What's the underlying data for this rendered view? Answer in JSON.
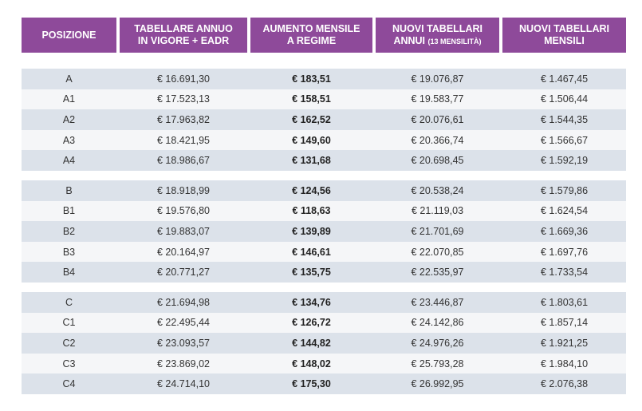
{
  "headers": {
    "col1": "POSIZIONE",
    "col2_line1": "TABELLARE ANNUO",
    "col2_line2": "IN VIGORE + EADR",
    "col3_line1": "AUMENTO MENSILE",
    "col3_line2": "A  REGIME",
    "col4_line1": "NUOVI TABELLARI",
    "col4_line2": "ANNUI",
    "col4_small": "(13 MENSILITÀ)",
    "col5_line1": "NUOVI TABELLARI",
    "col5_line2": "MENSILI"
  },
  "groups": [
    {
      "rows": [
        {
          "pos": "A",
          "annuo": "€ 16.691,30",
          "aumento": "€ 183,51",
          "nuovi_annui": "€ 19.076,87",
          "nuovi_mensili": "€ 1.467,45"
        },
        {
          "pos": "A1",
          "annuo": "€ 17.523,13",
          "aumento": "€ 158,51",
          "nuovi_annui": "€ 19.583,77",
          "nuovi_mensili": "€ 1.506,44"
        },
        {
          "pos": "A2",
          "annuo": "€ 17.963,82",
          "aumento": "€ 162,52",
          "nuovi_annui": "€ 20.076,61",
          "nuovi_mensili": "€ 1.544,35"
        },
        {
          "pos": "A3",
          "annuo": "€ 18.421,95",
          "aumento": "€ 149,60",
          "nuovi_annui": "€ 20.366,74",
          "nuovi_mensili": "€ 1.566,67"
        },
        {
          "pos": "A4",
          "annuo": "€ 18.986,67",
          "aumento": "€ 131,68",
          "nuovi_annui": "€ 20.698,45",
          "nuovi_mensili": "€ 1.592,19"
        }
      ]
    },
    {
      "rows": [
        {
          "pos": "B",
          "annuo": "€ 18.918,99",
          "aumento": "€ 124,56",
          "nuovi_annui": "€ 20.538,24",
          "nuovi_mensili": "€ 1.579,86"
        },
        {
          "pos": "B1",
          "annuo": "€ 19.576,80",
          "aumento": "€ 118,63",
          "nuovi_annui": "€ 21.119,03",
          "nuovi_mensili": "€ 1.624,54"
        },
        {
          "pos": "B2",
          "annuo": "€ 19.883,07",
          "aumento": "€ 139,89",
          "nuovi_annui": "€ 21.701,69",
          "nuovi_mensili": "€ 1.669,36"
        },
        {
          "pos": "B3",
          "annuo": "€  20.164,97",
          "aumento": "€ 146,61",
          "nuovi_annui": "€ 22.070,85",
          "nuovi_mensili": "€ 1.697,76"
        },
        {
          "pos": "B4",
          "annuo": "€ 20.771,27",
          "aumento": "€ 135,75",
          "nuovi_annui": "€ 22.535,97",
          "nuovi_mensili": "€ 1.733,54"
        }
      ]
    },
    {
      "rows": [
        {
          "pos": "C",
          "annuo": "€ 21.694,98",
          "aumento": "€ 134,76",
          "nuovi_annui": "€ 23.446,87",
          "nuovi_mensili": "€ 1.803,61"
        },
        {
          "pos": "C1",
          "annuo": "€ 22.495,44",
          "aumento": "€ 126,72",
          "nuovi_annui": "€ 24.142,86",
          "nuovi_mensili": "€ 1.857,14"
        },
        {
          "pos": "C2",
          "annuo": "€ 23.093,57",
          "aumento": "€ 144,82",
          "nuovi_annui": "€ 24.976,26",
          "nuovi_mensili": "€ 1.921,25"
        },
        {
          "pos": "C3",
          "annuo": "€ 23.869,02",
          "aumento": "€ 148,02",
          "nuovi_annui": "€ 25.793,28",
          "nuovi_mensili": "€ 1.984,10"
        },
        {
          "pos": "C4",
          "annuo": "€ 24.714,10",
          "aumento": "€ 175,30",
          "nuovi_annui": "€ 26.992,95",
          "nuovi_mensili": "€ 2.076,38"
        }
      ]
    }
  ]
}
